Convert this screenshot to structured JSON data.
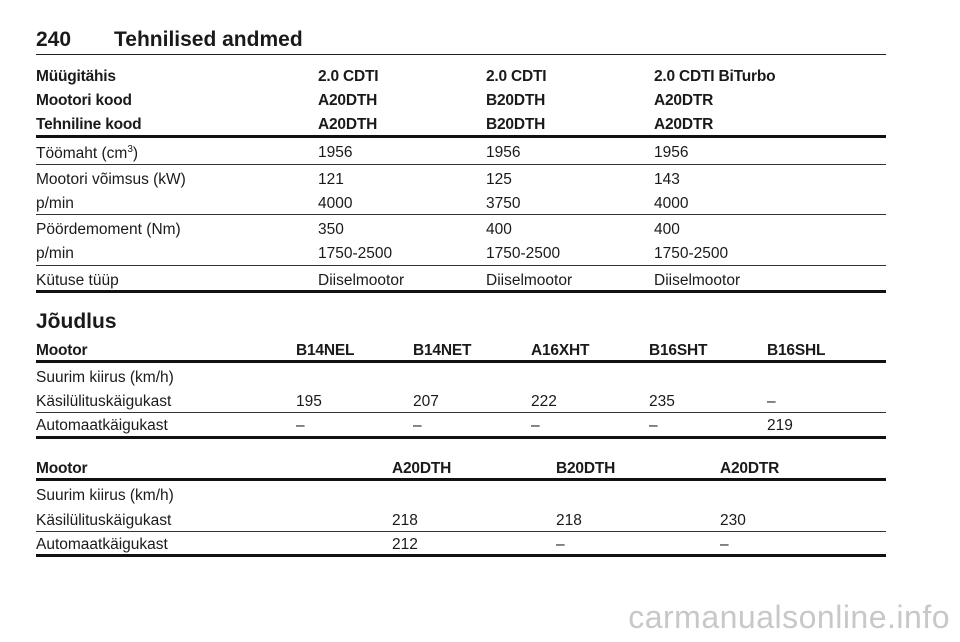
{
  "header": {
    "page_number": "240",
    "title": "Tehnilised andmed"
  },
  "table1": {
    "head": [
      [
        "Müügitähis",
        "2.0 CDTI",
        "2.0 CDTI",
        "2.0 CDTI BiTurbo"
      ],
      [
        "Mootori kood",
        "A20DTH",
        "B20DTH",
        "A20DTR"
      ],
      [
        "Tehniline kood",
        "A20DTH",
        "B20DTH",
        "A20DTR"
      ]
    ],
    "displacement_label": "Töömaht (cm",
    "displacement_sup": "3",
    "displacement_close": ")",
    "displacement": [
      "1956",
      "1956",
      "1956"
    ],
    "power_label": "Mootori võimsus (kW)",
    "power": [
      "121",
      "125",
      "143"
    ],
    "power_rpm_label": "p/min",
    "power_rpm": [
      "4000",
      "3750",
      "4000"
    ],
    "torque_label": "Pöördemoment (Nm)",
    "torque": [
      "350",
      "400",
      "400"
    ],
    "torque_rpm_label": "p/min",
    "torque_rpm": [
      "1750-2500",
      "1750-2500",
      "1750-2500"
    ],
    "fuel_label": "Kütuse tüüp",
    "fuel": [
      "Diiselmootor",
      "Diiselmootor",
      "Diiselmootor"
    ]
  },
  "section_title": "Jõudlus",
  "table2": {
    "head": [
      "Mootor",
      "B14NEL",
      "B14NET",
      "A16XHT",
      "B16SHT",
      "B16SHL"
    ],
    "group": "Suurim kiirus (km/h)",
    "manual_label": "Käsilülituskäigukast",
    "manual": [
      "195",
      "207",
      "222",
      "235",
      "–"
    ],
    "auto_label": "Automaatkäigukast",
    "auto": [
      "–",
      "–",
      "–",
      "–",
      "219"
    ]
  },
  "table3": {
    "head": [
      "Mootor",
      "A20DTH",
      "B20DTH",
      "A20DTR"
    ],
    "group": "Suurim kiirus (km/h)",
    "manual_label": "Käsilülituskäigukast",
    "manual": [
      "218",
      "218",
      "230"
    ],
    "auto_label": "Automaatkäigukast",
    "auto": [
      "212",
      "–",
      "–"
    ]
  },
  "watermark": "carmanualsonline.info"
}
